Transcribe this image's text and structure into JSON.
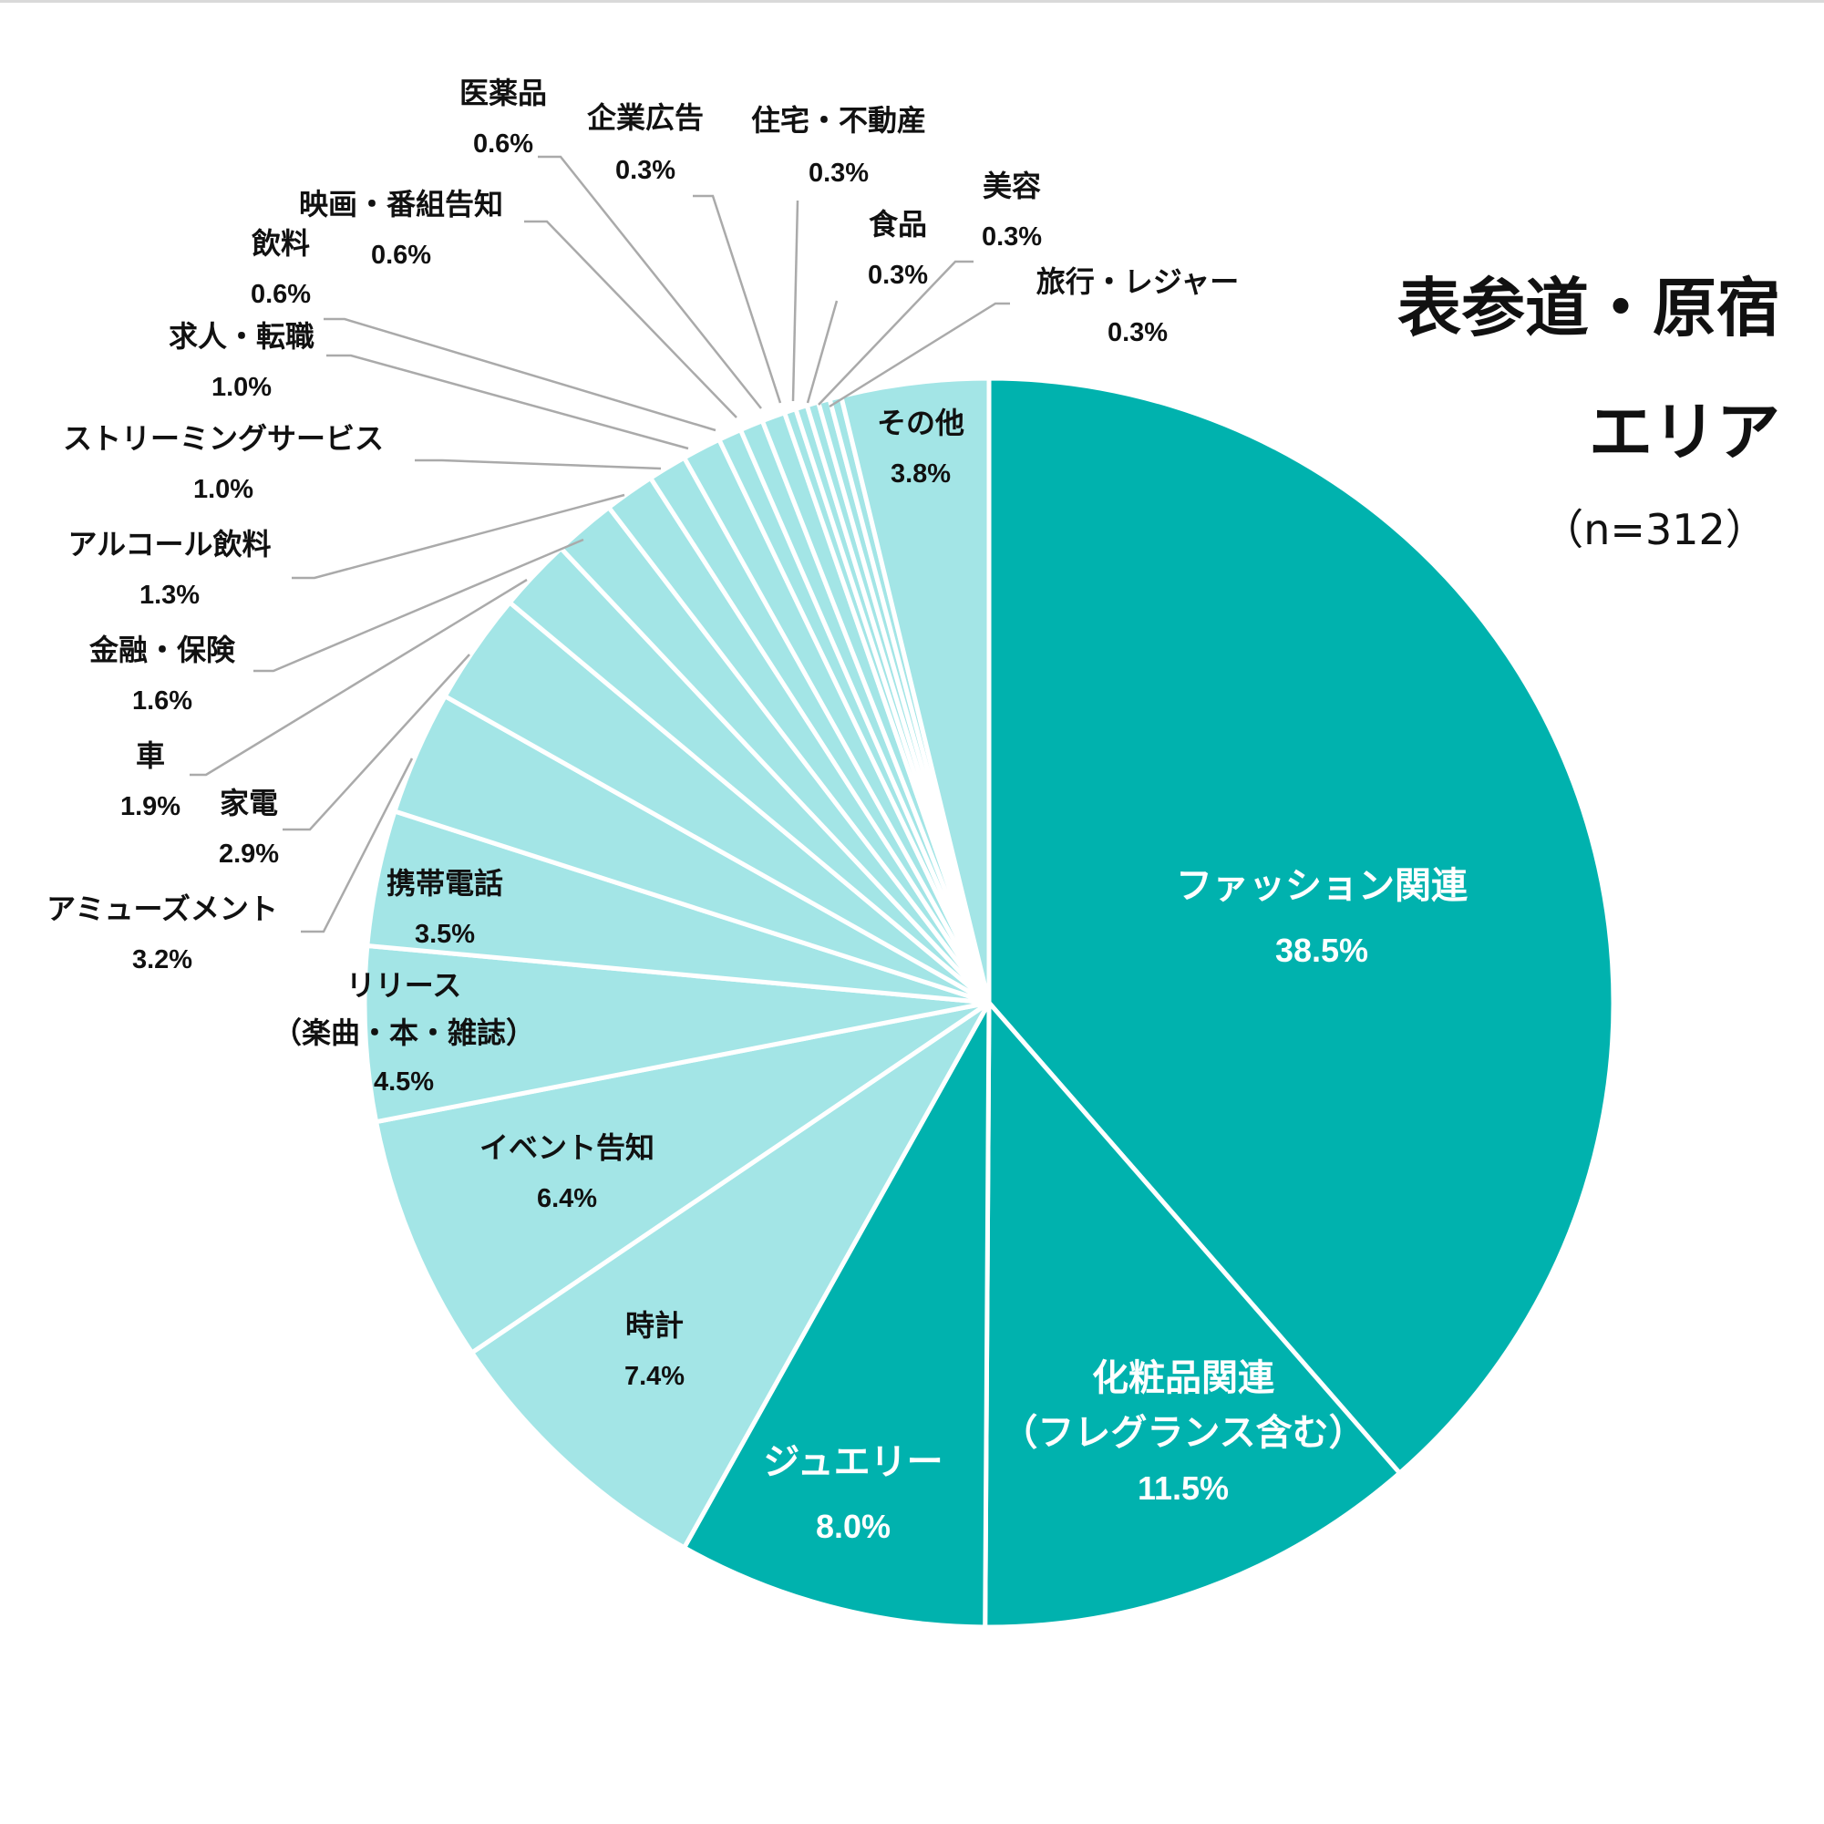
{
  "title_lines": [
    "表参道・原宿",
    "エリア"
  ],
  "sample_size": "（n=312）",
  "colors": {
    "major": "#00b2ae",
    "minor": "#a3e5e6",
    "leader": "#aaaaaa",
    "label_dark": "#111111",
    "label_light": "#ffffff"
  },
  "chart_data": {
    "type": "pie",
    "title": "表参道・原宿エリア",
    "subtitle": "（n=312）",
    "start": "12 o'clock, clockwise",
    "slices": [
      {
        "label": "ファッション関連",
        "value": 38.5,
        "value_label": "38.5%",
        "color": "#00b2ae"
      },
      {
        "label": "化粧品関連\n（フレグランス含む）",
        "value": 11.5,
        "value_label": "11.5%",
        "color": "#00b2ae"
      },
      {
        "label": "ジュエリー",
        "value": 8.0,
        "value_label": "8.0%",
        "color": "#00b2ae"
      },
      {
        "label": "時計",
        "value": 7.4,
        "value_label": "7.4%",
        "color": "#a3e5e6"
      },
      {
        "label": "イベント告知",
        "value": 6.4,
        "value_label": "6.4%",
        "color": "#a3e5e6"
      },
      {
        "label": "リリース\n（楽曲・本・雑誌）",
        "value": 4.5,
        "value_label": "4.5%",
        "color": "#a3e5e6"
      },
      {
        "label": "携帯電話",
        "value": 3.5,
        "value_label": "3.5%",
        "color": "#a3e5e6"
      },
      {
        "label": "アミューズメント",
        "value": 3.2,
        "value_label": "3.2%",
        "color": "#a3e5e6"
      },
      {
        "label": "家電",
        "value": 2.9,
        "value_label": "2.9%",
        "color": "#a3e5e6"
      },
      {
        "label": "車",
        "value": 1.9,
        "value_label": "1.9%",
        "color": "#a3e5e6"
      },
      {
        "label": "金融・保険",
        "value": 1.6,
        "value_label": "1.6%",
        "color": "#a3e5e6"
      },
      {
        "label": "アルコール飲料",
        "value": 1.3,
        "value_label": "1.3%",
        "color": "#a3e5e6"
      },
      {
        "label": "ストリーミングサービス",
        "value": 1.0,
        "value_label": "1.0%",
        "color": "#a3e5e6"
      },
      {
        "label": "求人・転職",
        "value": 1.0,
        "value_label": "1.0%",
        "color": "#a3e5e6"
      },
      {
        "label": "飲料",
        "value": 0.6,
        "value_label": "0.6%",
        "color": "#a3e5e6"
      },
      {
        "label": "映画・番組告知",
        "value": 0.6,
        "value_label": "0.6%",
        "color": "#a3e5e6"
      },
      {
        "label": "医薬品",
        "value": 0.6,
        "value_label": "0.6%",
        "color": "#a3e5e6"
      },
      {
        "label": "企業広告",
        "value": 0.3,
        "value_label": "0.3%",
        "color": "#a3e5e6"
      },
      {
        "label": "住宅・不動産",
        "value": 0.3,
        "value_label": "0.3%",
        "color": "#a3e5e6"
      },
      {
        "label": "食品",
        "value": 0.3,
        "value_label": "0.3%",
        "color": "#a3e5e6"
      },
      {
        "label": "美容",
        "value": 0.3,
        "value_label": "0.3%",
        "color": "#a3e5e6"
      },
      {
        "label": "旅行・レジャー",
        "value": 0.3,
        "value_label": "0.3%",
        "color": "#a3e5e6"
      },
      {
        "label": "その他",
        "value": 3.8,
        "value_label": "3.8%",
        "color": "#a3e5e6"
      }
    ]
  }
}
